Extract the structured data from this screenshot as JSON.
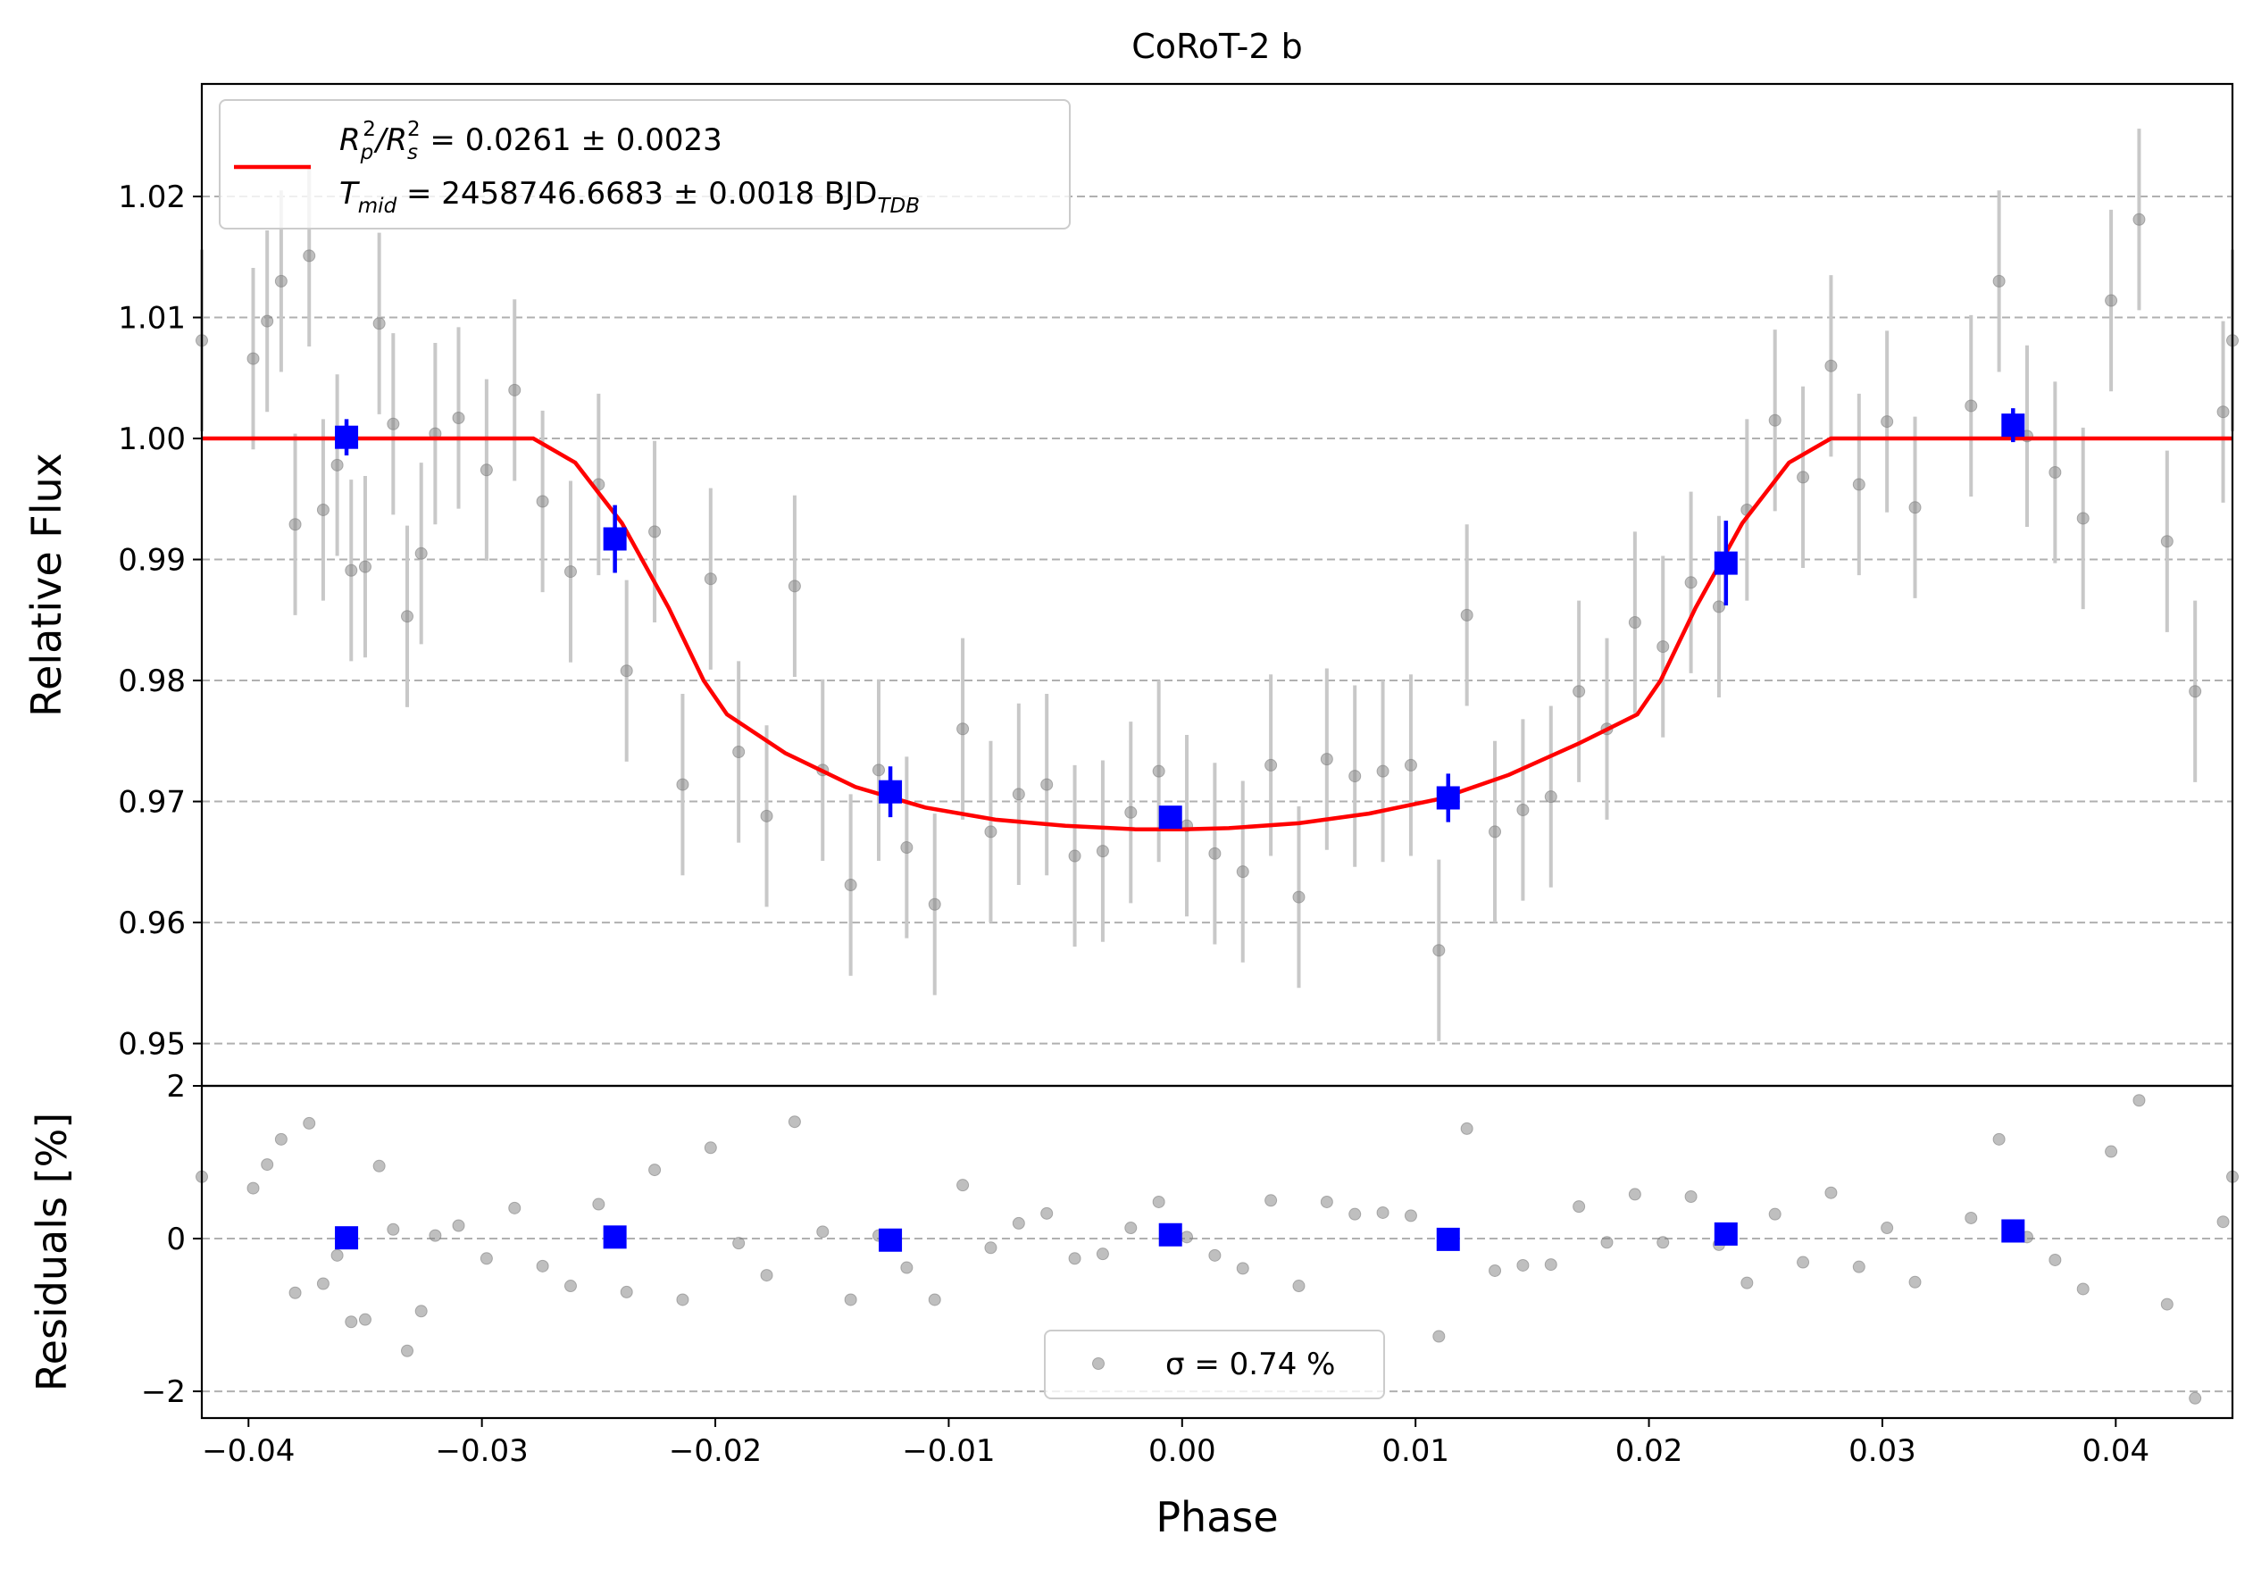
{
  "chart_data": {
    "type": "scatter",
    "title": "CoRoT-2 b",
    "xlabel": "Phase",
    "xlim": [
      -0.042,
      0.045
    ],
    "xticks": [
      -0.04,
      -0.03,
      -0.02,
      -0.01,
      0.0,
      0.01,
      0.02,
      0.03,
      0.04
    ],
    "xtick_labels": [
      "−0.04",
      "−0.03",
      "−0.02",
      "−0.01",
      "0.00",
      "0.01",
      "0.02",
      "0.03",
      "0.04"
    ],
    "grid": "horizontal dashed",
    "colors": {
      "raw": "#808080",
      "raw_err": "#c8c8c8",
      "binned": "#0000ff",
      "model": "#ff0000",
      "grid": "#b0b0b0"
    },
    "panels": {
      "flux": {
        "ylabel": "Relative Flux",
        "ylim": [
          0.9465,
          1.0293
        ],
        "yticks": [
          0.95,
          0.96,
          0.97,
          0.98,
          0.99,
          1.0,
          1.01,
          1.02
        ],
        "ytick_labels": [
          "0.95",
          "0.96",
          "0.97",
          "0.98",
          "0.99",
          "1.00",
          "1.01",
          "1.02"
        ],
        "legend": {
          "placement": "upper-left",
          "line1": {
            "pre": "R",
            "sub1": "p",
            "sup1": "2",
            "mid": "/R",
            "sub2": "s",
            "sup2": "2",
            "post": " = 0.0261 ± 0.0023"
          },
          "line2": {
            "pre": "T",
            "sub1": "mid",
            "post": " = 2458746.6683 ± 0.0018 BJD",
            "sub2": "TDB"
          }
        },
        "model": {
          "x": [
            -0.042,
            -0.0278,
            -0.026,
            -0.024,
            -0.022,
            -0.0205,
            -0.0195,
            -0.017,
            -0.014,
            -0.011,
            -0.008,
            -0.005,
            -0.002,
            0.0,
            0.002,
            0.005,
            0.008,
            0.011,
            0.014,
            0.017,
            0.0195,
            0.0205,
            0.022,
            0.024,
            0.026,
            0.0278,
            0.045
          ],
          "y": [
            1.0,
            1.0,
            0.998,
            0.993,
            0.986,
            0.98,
            0.9772,
            0.974,
            0.9712,
            0.9695,
            0.9685,
            0.968,
            0.9677,
            0.9677,
            0.9678,
            0.9682,
            0.969,
            0.9702,
            0.9722,
            0.9748,
            0.9772,
            0.98,
            0.986,
            0.993,
            0.998,
            1.0,
            1.0
          ]
        },
        "raw": {
          "x": [
            -0.042,
            -0.0398,
            -0.0392,
            -0.0386,
            -0.038,
            -0.0374,
            -0.0368,
            -0.0362,
            -0.0356,
            -0.035,
            -0.0344,
            -0.0338,
            -0.0332,
            -0.0326,
            -0.032,
            -0.031,
            -0.0298,
            -0.0286,
            -0.0274,
            -0.0262,
            -0.025,
            -0.0238,
            -0.0226,
            -0.0214,
            -0.0202,
            -0.019,
            -0.0178,
            -0.0166,
            -0.0154,
            -0.0142,
            -0.013,
            -0.0118,
            -0.0106,
            -0.0094,
            -0.0082,
            -0.007,
            -0.0058,
            -0.0046,
            -0.0034,
            -0.0022,
            -0.001,
            0.0002,
            0.0014,
            0.0026,
            0.0038,
            0.005,
            0.0062,
            0.0074,
            0.0086,
            0.0098,
            0.011,
            0.0122,
            0.0134,
            0.0146,
            0.0158,
            0.017,
            0.0182,
            0.0194,
            0.0206,
            0.0218,
            0.023,
            0.0242,
            0.0254,
            0.0266,
            0.0278,
            0.029,
            0.0302,
            0.0314,
            0.0338,
            0.035,
            0.0362,
            0.0374,
            0.0386,
            0.0398,
            0.041,
            0.0422,
            0.0434,
            0.0446,
            0.045
          ],
          "y": [
            1.0081,
            1.0066,
            1.0097,
            1.013,
            0.9929,
            1.0151,
            0.9941,
            0.9978,
            0.9891,
            0.9894,
            1.0095,
            1.0012,
            0.9853,
            0.9905,
            1.0004,
            1.0017,
            0.9974,
            1.004,
            0.9948,
            0.989,
            0.9962,
            0.9808,
            0.9923,
            0.9714,
            0.9884,
            0.9741,
            0.9688,
            0.9878,
            0.9726,
            0.9631,
            0.9726,
            0.9662,
            0.9615,
            0.976,
            0.9675,
            0.9706,
            0.9714,
            0.9655,
            0.9659,
            0.9691,
            0.9725,
            0.968,
            0.9657,
            0.9642,
            0.973,
            0.9621,
            0.9735,
            0.9721,
            0.9725,
            0.973,
            0.9577,
            0.9854,
            0.9675,
            0.9693,
            0.9704,
            0.9791,
            0.976,
            0.9848,
            0.9828,
            0.9881,
            0.9861,
            0.9941,
            1.0015,
            0.9968,
            1.006,
            0.9962,
            1.0014,
            0.9943,
            1.0027,
            1.013,
            1.0002,
            0.9972,
            0.9934,
            1.0114,
            1.0181,
            0.9915,
            0.9791,
            1.0022,
            1.0081
          ],
          "err": [
            0.0075,
            0.0075,
            0.0075,
            0.0075,
            0.0075,
            0.0075,
            0.0075,
            0.0075,
            0.0075,
            0.0075,
            0.0075,
            0.0075,
            0.0075,
            0.0075,
            0.0075,
            0.0075,
            0.0075,
            0.0075,
            0.0075,
            0.0075,
            0.0075,
            0.0075,
            0.0075,
            0.0075,
            0.0075,
            0.0075,
            0.0075,
            0.0075,
            0.0075,
            0.0075,
            0.0075,
            0.0075,
            0.0075,
            0.0075,
            0.0075,
            0.0075,
            0.0075,
            0.0075,
            0.0075,
            0.0075,
            0.0075,
            0.0075,
            0.0075,
            0.0075,
            0.0075,
            0.0075,
            0.0075,
            0.0075,
            0.0075,
            0.0075,
            0.0075,
            0.0075,
            0.0075,
            0.0075,
            0.0075,
            0.0075,
            0.0075,
            0.0075,
            0.0075,
            0.0075,
            0.0075,
            0.0075,
            0.0075,
            0.0075,
            0.0075,
            0.0075,
            0.0075,
            0.0075,
            0.0075,
            0.0075,
            0.0075,
            0.0075,
            0.0075,
            0.0075,
            0.0075,
            0.0075,
            0.0075,
            0.0075,
            0.0075
          ]
        },
        "binned": {
          "x": [
            -0.0358,
            -0.0243,
            -0.0125,
            -0.0005,
            0.0114,
            0.0233,
            0.0356
          ],
          "y": [
            1.0001,
            0.9917,
            0.9708,
            0.9687,
            0.9703,
            0.9897,
            1.0011
          ],
          "err": [
            0.0015,
            0.0028,
            0.0021,
            0.0008,
            0.002,
            0.0035,
            0.0014
          ]
        }
      },
      "residuals": {
        "ylabel": "Residuals [%]",
        "ylim": [
          -2.35,
          2.0
        ],
        "yticks": [
          -2,
          0,
          2
        ],
        "ytick_labels": [
          "−2",
          "0",
          "2"
        ],
        "legend": {
          "placement": "bottom-center",
          "label": "σ = 0.74 %"
        },
        "raw_y": [
          0.81,
          0.66,
          0.97,
          1.3,
          -0.71,
          1.51,
          -0.59,
          -0.22,
          -1.09,
          -1.06,
          0.95,
          0.12,
          -1.47,
          -0.95,
          0.04,
          0.17,
          -0.26,
          0.4,
          -0.36,
          -0.62,
          0.45,
          -0.7,
          0.9,
          -0.8,
          1.19,
          -0.06,
          -0.48,
          1.53,
          0.09,
          -0.8,
          0.04,
          -0.38,
          -0.8,
          0.7,
          -0.12,
          0.2,
          0.33,
          -0.26,
          -0.2,
          0.14,
          0.48,
          0.02,
          -0.22,
          -0.39,
          0.5,
          -0.62,
          0.48,
          0.32,
          0.34,
          0.3,
          -1.28,
          1.44,
          -0.42,
          -0.35,
          -0.34,
          0.42,
          -0.05,
          0.58,
          -0.05,
          0.55,
          -0.08,
          -0.58,
          0.32,
          -0.31,
          0.6,
          -0.37,
          0.14,
          -0.57,
          0.27,
          1.3,
          0.02,
          -0.28,
          -0.66,
          1.14,
          1.81,
          -0.86,
          -2.09,
          0.22,
          0.81
        ],
        "binned_y": [
          0.01,
          0.02,
          -0.02,
          0.05,
          -0.01,
          0.06,
          0.1
        ]
      }
    }
  }
}
